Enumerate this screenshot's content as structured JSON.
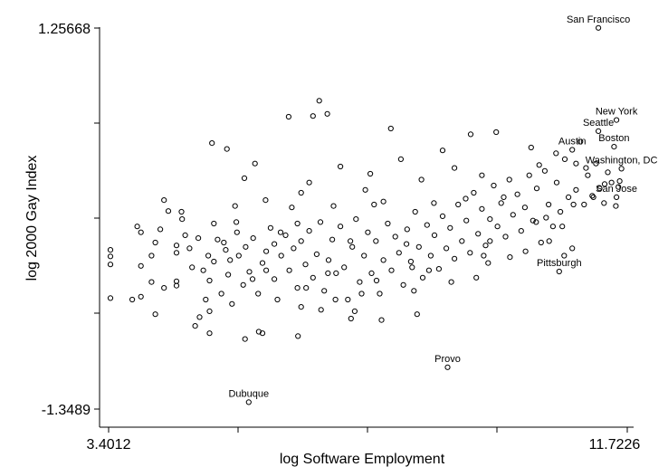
{
  "chart_data": {
    "type": "scatter",
    "title": "",
    "xlabel": "log Software Employment",
    "ylabel": "log 2000 Gay Index",
    "xlim": [
      3.4012,
      11.7226
    ],
    "ylim": [
      -1.3489,
      1.25668
    ],
    "x_ticks": [
      "3.4012",
      "11.7226"
    ],
    "y_ticks": [
      "1.25668",
      "-1.3489"
    ],
    "grid": false,
    "legend": "none",
    "annotations": [
      {
        "text": "San Francisco",
        "x": 11.26,
        "y": 1.258
      },
      {
        "text": "New York",
        "x": 11.55,
        "y": 0.628
      },
      {
        "text": "Seattle",
        "x": 11.26,
        "y": 0.552
      },
      {
        "text": "Boston",
        "x": 11.51,
        "y": 0.445
      },
      {
        "text": "Austin",
        "x": 10.84,
        "y": 0.424
      },
      {
        "text": "Washington, DC",
        "x": 11.63,
        "y": 0.295
      },
      {
        "text": "San Jose",
        "x": 11.55,
        "y": 0.1
      },
      {
        "text": "Pittsburgh",
        "x": 10.63,
        "y": -0.408
      },
      {
        "text": "Provo",
        "x": 8.84,
        "y": -1.063
      },
      {
        "text": "Dubuque",
        "x": 5.65,
        "y": -1.302
      }
    ],
    "points": [
      [
        11.26,
        1.258
      ],
      [
        11.55,
        0.628
      ],
      [
        11.26,
        0.552
      ],
      [
        11.51,
        0.445
      ],
      [
        10.84,
        0.424
      ],
      [
        11.63,
        0.295
      ],
      [
        11.55,
        0.1
      ],
      [
        10.63,
        -0.408
      ],
      [
        8.84,
        -1.063
      ],
      [
        5.65,
        -1.302
      ],
      [
        3.43,
        -0.26
      ],
      [
        3.43,
        -0.305
      ],
      [
        3.43,
        -0.36
      ],
      [
        3.43,
        -0.59
      ],
      [
        3.78,
        -0.6
      ],
      [
        3.92,
        -0.37
      ],
      [
        3.92,
        -0.58
      ],
      [
        3.92,
        -0.14
      ],
      [
        4.09,
        -0.3
      ],
      [
        4.09,
        -0.48
      ],
      [
        4.15,
        -0.21
      ],
      [
        4.15,
        -0.7
      ],
      [
        4.29,
        -0.52
      ],
      [
        4.29,
        0.08
      ],
      [
        4.49,
        -0.23
      ],
      [
        4.49,
        -0.28
      ],
      [
        4.49,
        -0.475
      ],
      [
        4.49,
        -0.505
      ],
      [
        4.57,
        0.0
      ],
      [
        4.63,
        -0.16
      ],
      [
        4.74,
        -0.38
      ],
      [
        4.86,
        -0.72
      ],
      [
        4.92,
        -0.4
      ],
      [
        4.96,
        -0.6
      ],
      [
        5.02,
        -0.47
      ],
      [
        5.02,
        -0.68
      ],
      [
        5.09,
        -0.34
      ],
      [
        5.15,
        -0.19
      ],
      [
        5.21,
        -0.56
      ],
      [
        5.28,
        -0.26
      ],
      [
        5.32,
        -0.43
      ],
      [
        5.38,
        -0.63
      ],
      [
        5.45,
        -0.07
      ],
      [
        5.49,
        -0.3
      ],
      [
        5.56,
        -0.5
      ],
      [
        5.6,
        -0.24
      ],
      [
        5.66,
        -0.41
      ],
      [
        5.72,
        -0.18
      ],
      [
        5.8,
        -0.56
      ],
      [
        5.87,
        -0.35
      ],
      [
        5.93,
        -0.27
      ],
      [
        6.0,
        -0.11
      ],
      [
        6.06,
        -0.46
      ],
      [
        6.11,
        -0.6
      ],
      [
        6.17,
        -0.3
      ],
      [
        6.24,
        -0.16
      ],
      [
        6.3,
        -0.4
      ],
      [
        6.37,
        -0.25
      ],
      [
        6.43,
        -0.52
      ],
      [
        6.49,
        -0.2
      ],
      [
        6.56,
        -0.36
      ],
      [
        6.62,
        -0.13
      ],
      [
        6.68,
        -0.45
      ],
      [
        6.74,
        -0.29
      ],
      [
        6.8,
        -0.07
      ],
      [
        6.86,
        -0.54
      ],
      [
        6.93,
        -0.33
      ],
      [
        6.99,
        -0.19
      ],
      [
        7.05,
        -0.42
      ],
      [
        7.12,
        -0.1
      ],
      [
        7.18,
        -0.38
      ],
      [
        7.24,
        -0.6
      ],
      [
        7.31,
        -0.24
      ],
      [
        7.37,
        -0.05
      ],
      [
        7.43,
        -0.48
      ],
      [
        7.5,
        -0.3
      ],
      [
        7.56,
        -0.14
      ],
      [
        7.62,
        -0.42
      ],
      [
        7.69,
        -0.2
      ],
      [
        7.75,
        -0.56
      ],
      [
        7.81,
        -0.33
      ],
      [
        7.88,
        -0.08
      ],
      [
        7.94,
        -0.4
      ],
      [
        8.0,
        -0.17
      ],
      [
        8.06,
        -0.28
      ],
      [
        8.13,
        -0.5
      ],
      [
        8.19,
        -0.12
      ],
      [
        8.25,
        -0.34
      ],
      [
        8.32,
        0.0
      ],
      [
        8.38,
        -0.24
      ],
      [
        8.44,
        -0.45
      ],
      [
        8.51,
        -0.09
      ],
      [
        8.57,
        -0.3
      ],
      [
        8.63,
        -0.16
      ],
      [
        8.7,
        -0.39
      ],
      [
        8.76,
        -0.03
      ],
      [
        8.82,
        -0.25
      ],
      [
        8.88,
        -0.11
      ],
      [
        8.95,
        -0.32
      ],
      [
        9.01,
        0.05
      ],
      [
        9.07,
        -0.2
      ],
      [
        9.14,
        -0.06
      ],
      [
        9.2,
        -0.28
      ],
      [
        9.26,
        0.13
      ],
      [
        9.33,
        -0.15
      ],
      [
        9.39,
        0.02
      ],
      [
        9.45,
        -0.23
      ],
      [
        9.52,
        -0.05
      ],
      [
        9.58,
        0.18
      ],
      [
        9.64,
        -0.1
      ],
      [
        9.7,
        0.06
      ],
      [
        9.77,
        -0.17
      ],
      [
        9.83,
        0.22
      ],
      [
        9.89,
        -0.02
      ],
      [
        9.96,
        0.12
      ],
      [
        10.02,
        -0.13
      ],
      [
        10.08,
        0.03
      ],
      [
        10.15,
        0.25
      ],
      [
        10.21,
        -0.06
      ],
      [
        10.27,
        0.16
      ],
      [
        10.34,
        -0.21
      ],
      [
        10.4,
        0.28
      ],
      [
        10.46,
        0.05
      ],
      [
        10.53,
        -0.1
      ],
      [
        10.59,
        0.2
      ],
      [
        10.65,
        0.0
      ],
      [
        10.72,
        0.36
      ],
      [
        10.78,
        0.1
      ],
      [
        10.84,
        -0.25
      ],
      [
        10.9,
        0.15
      ],
      [
        10.97,
        0.48
      ],
      [
        11.03,
        0.05
      ],
      [
        11.09,
        0.25
      ],
      [
        11.16,
        0.11
      ],
      [
        11.22,
        0.33
      ],
      [
        11.28,
        0.16
      ],
      [
        11.35,
        0.06
      ],
      [
        11.41,
        0.27
      ],
      [
        11.47,
        0.2
      ],
      [
        11.54,
        0.04
      ],
      [
        11.6,
        0.21
      ],
      [
        11.58,
        0.17
      ],
      [
        11.36,
        0.19
      ],
      [
        11.18,
        0.1
      ],
      [
        10.71,
        -0.3
      ],
      [
        6.29,
        0.65
      ],
      [
        6.68,
        0.655
      ],
      [
        6.78,
        0.76
      ],
      [
        6.91,
        0.67
      ],
      [
        5.06,
        0.47
      ],
      [
        5.3,
        0.43
      ],
      [
        7.93,
        0.57
      ],
      [
        8.76,
        0.42
      ],
      [
        9.21,
        0.53
      ],
      [
        9.62,
        0.545
      ],
      [
        10.18,
        0.44
      ],
      [
        10.58,
        0.4
      ],
      [
        5.58,
        0.23
      ],
      [
        5.75,
        0.33
      ],
      [
        6.62,
        0.2
      ],
      [
        7.12,
        0.31
      ],
      [
        7.6,
        0.26
      ],
      [
        8.09,
        0.36
      ],
      [
        8.42,
        0.22
      ],
      [
        8.95,
        0.3
      ],
      [
        9.39,
        0.25
      ],
      [
        10.31,
        0.32
      ],
      [
        10.9,
        0.33
      ],
      [
        11.06,
        0.3
      ],
      [
        7.29,
        -0.73
      ],
      [
        8.3,
        -0.54
      ],
      [
        7.78,
        -0.74
      ],
      [
        5.81,
        -0.82
      ],
      [
        5.59,
        -0.87
      ],
      [
        5.87,
        -0.83
      ],
      [
        4.79,
        -0.78
      ],
      [
        5.02,
        -0.83
      ],
      [
        6.44,
        -0.85
      ],
      [
        8.35,
        -0.7
      ],
      [
        9.42,
        -0.3
      ],
      [
        9.49,
        -0.35
      ],
      [
        4.36,
        0.005
      ],
      [
        4.58,
        -0.05
      ],
      [
        5.43,
        0.04
      ],
      [
        5.92,
        0.08
      ],
      [
        6.49,
        0.13
      ],
      [
        7.52,
        0.15
      ],
      [
        4.23,
        -0.12
      ],
      [
        3.86,
        -0.1
      ],
      [
        5.25,
        -0.21
      ],
      [
        5.35,
        -0.33
      ],
      [
        5.93,
        -0.4
      ],
      [
        6.49,
        -0.65
      ],
      [
        6.81,
        -0.67
      ],
      [
        7.35,
        -0.68
      ],
      [
        7.46,
        -0.56
      ],
      [
        6.16,
        -0.14
      ],
      [
        6.34,
        0.03
      ],
      [
        7.01,
        0.04
      ],
      [
        7.81,
        0.07
      ],
      [
        8.62,
        0.06
      ],
      [
        9.13,
        0.09
      ],
      [
        9.74,
        0.1
      ],
      [
        10.42,
        -0.04
      ],
      [
        10.68,
        -0.1
      ],
      [
        4.7,
        -0.25
      ],
      [
        4.84,
        -0.18
      ],
      [
        5.09,
        -0.08
      ],
      [
        5.46,
        -0.14
      ],
      [
        6.06,
        -0.22
      ],
      [
        6.43,
        -0.08
      ],
      [
        6.92,
        -0.42
      ],
      [
        7.28,
        -0.2
      ],
      [
        7.66,
        0.05
      ],
      [
        8.18,
        -0.22
      ],
      [
        8.54,
        -0.4
      ],
      [
        9.3,
        -0.45
      ],
      [
        9.84,
        -0.31
      ],
      [
        10.09,
        -0.27
      ],
      [
        10.47,
        -0.2
      ],
      [
        5.0,
        -0.3
      ],
      [
        5.71,
        -0.46
      ],
      [
        6.57,
        -0.52
      ],
      [
        7.04,
        -0.6
      ],
      [
        7.7,
        -0.47
      ],
      [
        8.27,
        -0.38
      ],
      [
        8.9,
        -0.48
      ],
      [
        9.52,
        -0.2
      ],
      [
        10.26,
        -0.07
      ],
      [
        10.86,
        0.05
      ]
    ]
  }
}
